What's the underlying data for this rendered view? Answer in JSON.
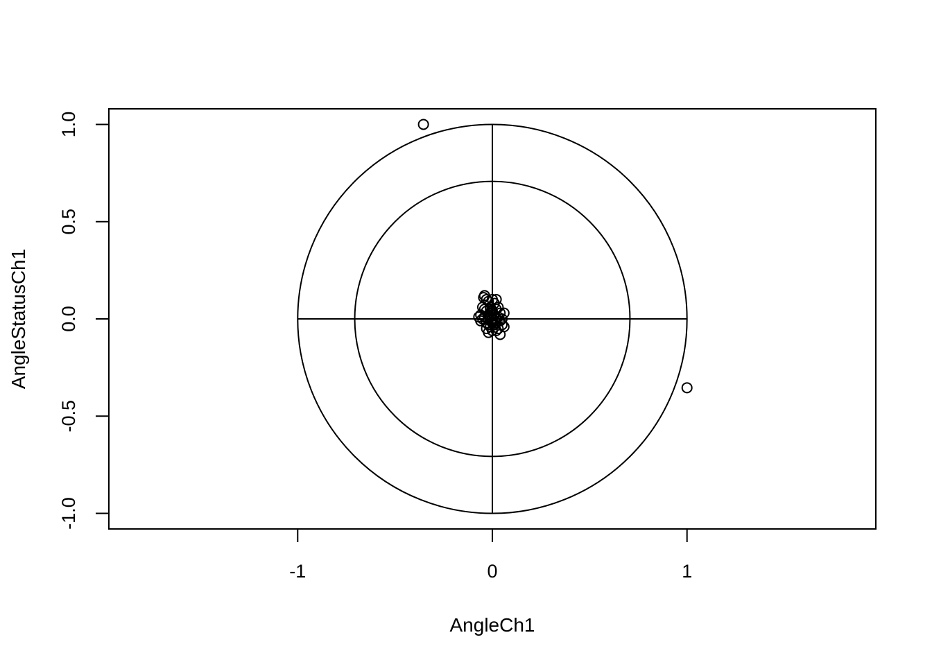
{
  "chart_data": {
    "type": "scatter",
    "title": "",
    "xlabel": "AngleCh1",
    "ylabel": "AngleStatusCh1",
    "xlim": [
      -1.97,
      1.97
    ],
    "ylim": [
      -1.08,
      1.08
    ],
    "x_ticks": [
      -1,
      0,
      1
    ],
    "x_tick_labels": [
      "-1",
      "0",
      "1"
    ],
    "y_ticks": [
      -1,
      -0.5,
      0,
      0.5,
      1
    ],
    "y_tick_labels": [
      "-1.0",
      "-0.5",
      "0.0",
      "0.5",
      "1.0"
    ],
    "grid": false,
    "legend": "none",
    "marker": "open-circle",
    "colors": {
      "points": "#000000",
      "lines": "#000000",
      "background": "#ffffff"
    },
    "reference_circles": [
      {
        "center": [
          0,
          0
        ],
        "radius": 1.0
      },
      {
        "center": [
          0,
          0
        ],
        "radius": 0.707
      }
    ],
    "reference_lines": [
      {
        "from": [
          -1,
          0
        ],
        "to": [
          1,
          0
        ]
      },
      {
        "from": [
          0,
          -1
        ],
        "to": [
          0,
          1
        ]
      }
    ],
    "series": [
      {
        "points": [
          [
            -0.354,
            1.0
          ],
          [
            1.0,
            -0.354
          ],
          [
            -0.04,
            0.12
          ],
          [
            -0.045,
            0.11
          ],
          [
            -0.03,
            0.1
          ],
          [
            0.0,
            0.1
          ],
          [
            0.02,
            0.1
          ],
          [
            -0.02,
            0.09
          ],
          [
            0.01,
            0.08
          ],
          [
            -0.05,
            0.06
          ],
          [
            -0.04,
            0.05
          ],
          [
            0.03,
            0.06
          ],
          [
            0.02,
            0.05
          ],
          [
            -0.01,
            0.05
          ],
          [
            0.0,
            0.04
          ],
          [
            -0.03,
            0.04
          ],
          [
            0.04,
            0.03
          ],
          [
            0.06,
            0.03
          ],
          [
            -0.06,
            0.02
          ],
          [
            -0.02,
            0.02
          ],
          [
            0.01,
            0.02
          ],
          [
            0.03,
            0.01
          ],
          [
            -0.07,
            0.01
          ],
          [
            -0.04,
            0.01
          ],
          [
            0.0,
            0.0
          ],
          [
            0.02,
            0.0
          ],
          [
            -0.02,
            0.0
          ],
          [
            0.05,
            0.0
          ],
          [
            -0.05,
            0.0
          ],
          [
            0.04,
            -0.01
          ],
          [
            -0.01,
            -0.01
          ],
          [
            -0.06,
            -0.01
          ],
          [
            0.02,
            -0.02
          ],
          [
            -0.03,
            -0.02
          ],
          [
            0.01,
            -0.03
          ],
          [
            0.05,
            -0.03
          ],
          [
            -0.02,
            -0.03
          ],
          [
            0.06,
            -0.04
          ],
          [
            -0.01,
            -0.04
          ],
          [
            0.03,
            -0.05
          ],
          [
            -0.03,
            -0.05
          ],
          [
            0.02,
            -0.06
          ],
          [
            0.0,
            -0.06
          ],
          [
            -0.02,
            -0.07
          ],
          [
            0.04,
            -0.08
          ],
          [
            0.0,
            0.03
          ],
          [
            0.01,
            -0.01
          ],
          [
            -0.01,
            0.01
          ],
          [
            0.0,
            -0.02
          ],
          [
            -0.01,
            0.06
          ]
        ]
      }
    ]
  }
}
